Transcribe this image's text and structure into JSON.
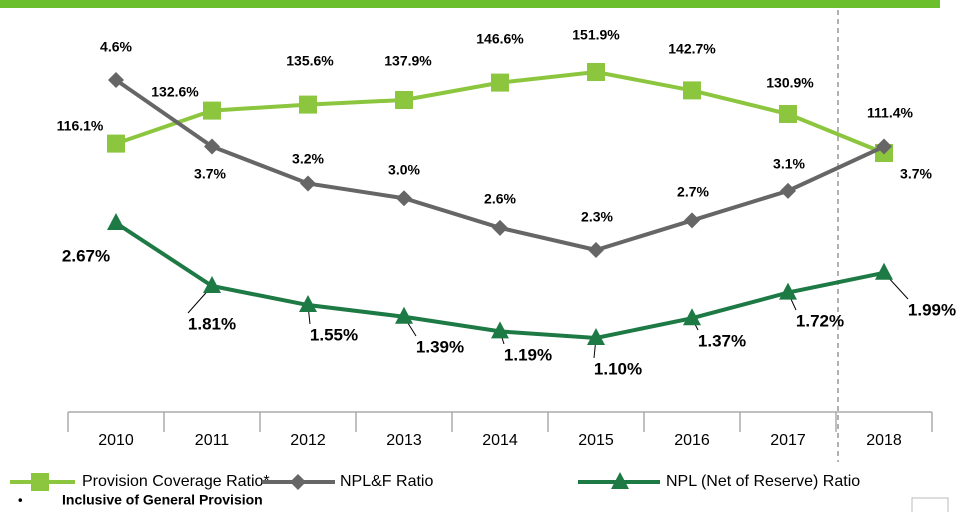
{
  "chart_data": {
    "type": "line",
    "categories": [
      "2010",
      "2011",
      "2012",
      "2013",
      "2014",
      "2015",
      "2016",
      "2017",
      "2018"
    ],
    "series": [
      {
        "name": "Provision Coverage Ratio*",
        "color": "#8cc63f",
        "marker": "square",
        "values": [
          116.1,
          132.6,
          135.6,
          137.9,
          146.6,
          151.9,
          142.7,
          130.9,
          111.4
        ],
        "value_labels": [
          "116.1%",
          "132.6%",
          "135.6%",
          "137.9%",
          "146.6%",
          "151.9%",
          "142.7%",
          "130.9%",
          "111.4%"
        ]
      },
      {
        "name": "NPL&F Ratio",
        "color": "#666666",
        "marker": "diamond",
        "values": [
          4.6,
          3.7,
          3.2,
          3.0,
          2.6,
          2.3,
          2.7,
          3.1,
          3.7
        ],
        "value_labels": [
          "4.6%",
          "3.7%",
          "3.2%",
          "3.0%",
          "2.6%",
          "2.3%",
          "2.7%",
          "3.1%",
          "3.7%"
        ]
      },
      {
        "name": "NPL (Net of Reserve) Ratio",
        "color": "#1e7a45",
        "marker": "triangle",
        "values": [
          2.67,
          1.81,
          1.55,
          1.39,
          1.19,
          1.1,
          1.37,
          1.72,
          1.99
        ],
        "value_labels": [
          "2.67%",
          "1.81%",
          "1.55%",
          "1.39%",
          "1.19%",
          "1.10%",
          "1.37%",
          "1.72%",
          "1.99%"
        ]
      }
    ],
    "footnote": "Inclusive of General Provision"
  }
}
